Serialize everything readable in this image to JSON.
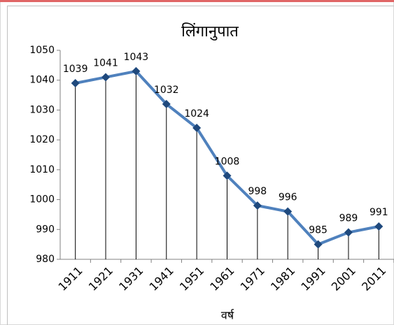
{
  "chart_data": {
    "type": "line",
    "title": "लिंगानुपात",
    "x_label": "वर्ष",
    "categories": [
      "1911",
      "1921",
      "1931",
      "1941",
      "1951",
      "1961",
      "1971",
      "1981",
      "1991",
      "2001",
      "2011"
    ],
    "values": [
      1039,
      1041,
      1043,
      1032,
      1024,
      1008,
      998,
      996,
      985,
      989,
      991
    ],
    "color": "#4f81bd",
    "marker_color": "#1f497d",
    "drop_lines": true,
    "ylim": [
      980,
      1050
    ],
    "yticks": [
      980,
      990,
      1000,
      1010,
      1020,
      1030,
      1040,
      1050
    ]
  }
}
